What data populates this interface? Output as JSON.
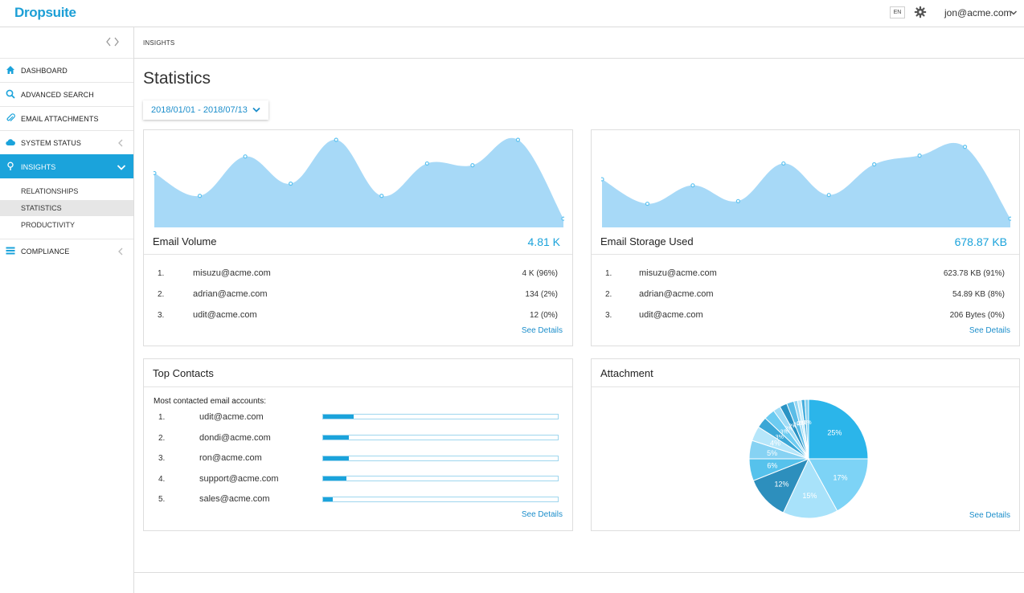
{
  "brand": {
    "logo_text": "Dropsuite"
  },
  "topbar": {
    "language": "EN",
    "user": "jon@acme.com"
  },
  "sidebar": {
    "items": [
      {
        "label": "DASHBOARD",
        "icon": "home-icon"
      },
      {
        "label": "ADVANCED SEARCH",
        "icon": "search-icon"
      },
      {
        "label": "EMAIL ATTACHMENTS",
        "icon": "paperclip-icon"
      },
      {
        "label": "SYSTEM STATUS",
        "icon": "cloud-icon"
      },
      {
        "label": "INSIGHTS",
        "icon": "lightbulb-icon"
      },
      {
        "label": "COMPLIANCE",
        "icon": "list-icon"
      }
    ],
    "subitems": [
      {
        "label": "RELATIONSHIPS"
      },
      {
        "label": "STATISTICS"
      },
      {
        "label": "PRODUCTIVITY"
      }
    ]
  },
  "breadcrumb": "INSIGHTS",
  "page_title": "Statistics",
  "date_range": "2018/01/01 - 2018/07/13",
  "colors": {
    "accent": "#1ba3db",
    "chart_fill": "#a7d9f7",
    "chart_point": "#5cc2f0"
  },
  "email_volume": {
    "title": "Email Volume",
    "total": "4.81 K",
    "rows": [
      {
        "idx": "1.",
        "name": "misuzu@acme.com",
        "value": "4 K (96%)"
      },
      {
        "idx": "2.",
        "name": "adrian@acme.com",
        "value": "134 (2%)"
      },
      {
        "idx": "3.",
        "name": "udit@acme.com",
        "value": "12 (0%)"
      }
    ],
    "see_details": "See Details"
  },
  "email_storage": {
    "title": "Email Storage Used",
    "total": "678.87 KB",
    "rows": [
      {
        "idx": "1.",
        "name": "misuzu@acme.com",
        "value": "623.78 KB (91%)"
      },
      {
        "idx": "2.",
        "name": "adrian@acme.com",
        "value": "54.89 KB (8%)"
      },
      {
        "idx": "3.",
        "name": "udit@acme.com",
        "value": "206 Bytes (0%)"
      }
    ],
    "see_details": "See Details"
  },
  "top_contacts": {
    "title": "Top Contacts",
    "subtitle": "Most contacted email accounts:",
    "rows": [
      {
        "idx": "1.",
        "name": "udit@acme.com",
        "fraction": 0.13
      },
      {
        "idx": "2.",
        "name": "dondi@acme.com",
        "fraction": 0.11
      },
      {
        "idx": "3.",
        "name": "ron@acme.com",
        "fraction": 0.11
      },
      {
        "idx": "4.",
        "name": "support@acme.com",
        "fraction": 0.1
      },
      {
        "idx": "5.",
        "name": "sales@acme.com",
        "fraction": 0.04
      }
    ],
    "see_details": "See Details"
  },
  "attachment": {
    "title": "Attachment",
    "see_details": "See Details"
  },
  "chart_data": [
    {
      "type": "area",
      "series": [
        {
          "values": [
            0.62,
            0.36,
            0.81,
            0.5,
            1.0,
            0.36,
            0.73,
            0.71,
            1.0,
            0.1
          ]
        }
      ]
    },
    {
      "type": "area",
      "series": [
        {
          "values": [
            0.55,
            0.27,
            0.48,
            0.3,
            0.73,
            0.37,
            0.72,
            0.82,
            0.92,
            0.1
          ]
        }
      ]
    },
    {
      "type": "pie",
      "values": [
        25,
        17,
        15,
        12,
        6,
        5,
        4,
        3,
        3,
        2,
        2,
        2,
        1,
        1,
        1,
        1
      ],
      "labels": [
        "25%",
        "17%",
        "15%",
        "12%",
        "6%",
        "5%",
        "4%",
        "3%",
        "3%",
        "2%",
        "2%",
        "2%",
        "1%",
        "1%",
        "1%",
        "1%"
      ]
    }
  ]
}
